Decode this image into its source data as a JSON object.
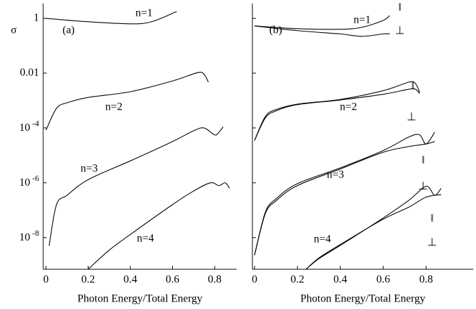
{
  "chart_data": [
    {
      "type": "line",
      "yscale": "log",
      "annotation": "(a)",
      "ylabel": "σ",
      "xlabel": "Photon Energy/Total Energy",
      "xlim": [
        -0.013,
        0.904
      ],
      "ylim": [
        7e-10,
        3.5
      ],
      "xticks": [
        0,
        0.2,
        0.4,
        0.6,
        0.8
      ],
      "yticks": [
        1,
        0.01,
        {
          "value": 0.0001,
          "label": "10-4"
        },
        {
          "value": 1e-06,
          "label": "10-6"
        },
        {
          "value": 1e-08,
          "label": "10-8"
        }
      ],
      "yticklabels": true,
      "color": "#000000",
      "series": [
        {
          "name": "n=1",
          "x": [
            0,
            0.2,
            0.4,
            0.5,
            0.62
          ],
          "values": [
            1,
            0.75,
            0.63,
            0.75,
            1.78
          ]
        },
        {
          "name": "n=2",
          "x": [
            0,
            0.05,
            0.1,
            0.2,
            0.4,
            0.6,
            0.72,
            0.75,
            0.77
          ],
          "values": [
            8.3e-05,
            0.00052,
            0.00083,
            0.0013,
            0.0021,
            0.0052,
            0.0105,
            0.009,
            0.0047
          ]
        },
        {
          "name": "n=3",
          "x": [
            0.015,
            0.05,
            0.1,
            0.2,
            0.4,
            0.6,
            0.7,
            0.75,
            0.8,
            0.82,
            0.84
          ],
          "values": [
            5e-09,
            1.6e-07,
            3.5e-07,
            1.3e-06,
            6.3e-06,
            3.2e-05,
            7.9e-05,
            0.0001,
            5.6e-05,
            7e-05,
            0.00011
          ]
        },
        {
          "name": "n=4",
          "x": [
            0.2,
            0.3,
            0.4,
            0.6,
            0.7,
            0.78,
            0.82,
            0.85,
            0.87
          ],
          "values": [
            7e-10,
            3.5e-09,
            1.3e-08,
            1.6e-07,
            5e-07,
            1e-06,
            7.9e-07,
            1e-06,
            6.3e-07
          ]
        }
      ]
    },
    {
      "type": "line",
      "yscale": "log",
      "annotation": "(b)",
      "xlabel": "Photon Energy/Total Energy",
      "xlim": [
        -0.01,
        1.02
      ],
      "ylim": [
        7e-10,
        3.5
      ],
      "xticks": [
        0,
        0.2,
        0.4,
        0.6,
        0.8
      ],
      "yticks": [
        1,
        0.01,
        0.0001,
        1e-06,
        1e-08
      ],
      "yticklabels": false,
      "color": "#000000",
      "series": [
        {
          "name": "n=1",
          "curves": [
            {
              "name": "‖",
              "x": [
                0,
                0.2,
                0.4,
                0.5,
                0.6,
                0.63
              ],
              "values": [
                0.53,
                0.42,
                0.4,
                0.47,
                0.84,
                1.26
              ]
            },
            {
              "name": "⊥",
              "x": [
                0,
                0.2,
                0.4,
                0.5,
                0.6,
                0.63
              ],
              "values": [
                0.53,
                0.355,
                0.27,
                0.22,
                0.27,
                0.27
              ]
            }
          ]
        },
        {
          "name": "n=2",
          "curves": [
            {
              "name": "‖",
              "x": [
                0,
                0.05,
                0.1,
                0.2,
                0.4,
                0.6,
                0.72,
                0.75,
                0.77
              ],
              "values": [
                3.5e-05,
                0.00026,
                0.00047,
                0.00074,
                0.0011,
                0.0023,
                0.0047,
                0.0042,
                0.002
              ]
            },
            {
              "name": "⊥",
              "x": [
                0,
                0.05,
                0.1,
                0.2,
                0.4,
                0.6,
                0.72,
                0.75,
                0.77
              ],
              "values": [
                3.5e-05,
                0.00023,
                0.00042,
                0.00071,
                0.00105,
                0.0017,
                0.0026,
                0.0026,
                0.0018
              ]
            }
          ]
        },
        {
          "name": "n=3",
          "curves": [
            {
              "name": "‖",
              "x": [
                0,
                0.05,
                0.1,
                0.2,
                0.4,
                0.6,
                0.72,
                0.77,
                0.8,
                0.84
              ],
              "values": [
                2.3e-09,
                8.3e-08,
                2.6e-07,
                9.3e-07,
                3.5e-06,
                1.5e-05,
                4.7e-05,
                5.6e-05,
                2.6e-05,
                7e-05
              ]
            },
            {
              "name": "⊥",
              "x": [
                0,
                0.05,
                0.1,
                0.2,
                0.4,
                0.6,
                0.72,
                0.8,
                0.84
              ],
              "values": [
                2.3e-09,
                7.4e-08,
                2.2e-07,
                7.9e-07,
                3.2e-06,
                1.3e-05,
                2.1e-05,
                2.6e-05,
                3.2e-05
              ]
            }
          ]
        },
        {
          "name": "n=4",
          "curves": [
            {
              "name": "‖",
              "x": [
                0.24,
                0.3,
                0.4,
                0.6,
                0.72,
                0.8,
                0.84,
                0.87
              ],
              "values": [
                7e-10,
                1.7e-09,
                5.2e-09,
                5.2e-08,
                2.3e-07,
                7.4e-07,
                3.5e-07,
                6.3e-07
              ]
            },
            {
              "name": "⊥",
              "x": [
                0.24,
                0.3,
                0.4,
                0.6,
                0.72,
                0.8,
                0.87
              ],
              "values": [
                7e-10,
                1.8e-09,
                5.6e-09,
                4.7e-08,
                1.3e-07,
                3e-07,
                3.7e-07
              ]
            }
          ]
        }
      ]
    }
  ]
}
